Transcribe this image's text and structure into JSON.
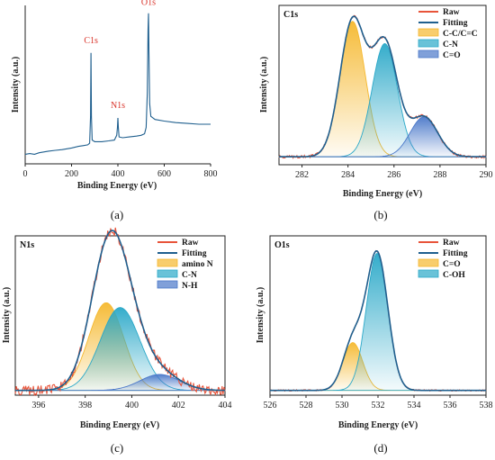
{
  "chart_data": [
    {
      "id": "a",
      "type": "line",
      "caption": "(a)",
      "title": "",
      "xlabel": "Binding Energy (eV)",
      "ylabel": "Intensity (a.u.)",
      "xlim": [
        0,
        800
      ],
      "xticks": [
        "0",
        "200",
        "400",
        "600",
        "800"
      ],
      "legend": [],
      "frame": "left-bottom",
      "annotations": [
        {
          "text": "C1s",
          "x": 284,
          "y": 0.74
        },
        {
          "text": "N1s",
          "x": 400,
          "y": 0.33
        },
        {
          "text": "O1s",
          "x": 532,
          "y": 0.98
        }
      ],
      "series": [
        {
          "color": "#1f5f8e",
          "points": [
            [
              0,
              0.06
            ],
            [
              20,
              0.065
            ],
            [
              40,
              0.06
            ],
            [
              60,
              0.07
            ],
            [
              80,
              0.075
            ],
            [
              100,
              0.08
            ],
            [
              130,
              0.085
            ],
            [
              160,
              0.09
            ],
            [
              200,
              0.1
            ],
            [
              230,
              0.11
            ],
            [
              250,
              0.115
            ],
            [
              270,
              0.12
            ],
            [
              278,
              0.13
            ],
            [
              282,
              0.3
            ],
            [
              284,
              0.7
            ],
            [
              286,
              0.3
            ],
            [
              289,
              0.15
            ],
            [
              300,
              0.14
            ],
            [
              330,
              0.14
            ],
            [
              360,
              0.145
            ],
            [
              385,
              0.15
            ],
            [
              395,
              0.18
            ],
            [
              398,
              0.23
            ],
            [
              400,
              0.29
            ],
            [
              402,
              0.23
            ],
            [
              405,
              0.17
            ],
            [
              420,
              0.165
            ],
            [
              450,
              0.17
            ],
            [
              480,
              0.175
            ],
            [
              500,
              0.18
            ],
            [
              515,
              0.19
            ],
            [
              522,
              0.23
            ],
            [
              527,
              0.45
            ],
            [
              530,
              0.85
            ],
            [
              532,
              0.95
            ],
            [
              534,
              0.7
            ],
            [
              537,
              0.38
            ],
            [
              542,
              0.3
            ],
            [
              560,
              0.28
            ],
            [
              600,
              0.27
            ],
            [
              650,
              0.26
            ],
            [
              700,
              0.255
            ],
            [
              750,
              0.25
            ],
            [
              800,
              0.25
            ]
          ]
        }
      ]
    },
    {
      "id": "b",
      "type": "area",
      "caption": "(b)",
      "title": "C1s",
      "xlabel": "Binding Energy (eV)",
      "ylabel": "Intensity (a.u.)",
      "xlim": [
        281,
        290
      ],
      "xticks": [
        "282",
        "284",
        "286",
        "288",
        "290"
      ],
      "frame": "box",
      "legend_position": "top-right",
      "legend": [
        {
          "label": "Raw",
          "kind": "line",
          "color": "#e8543a"
        },
        {
          "label": "Fitting",
          "kind": "line",
          "color": "#1f5f8e"
        },
        {
          "label": "C-C/C=C",
          "kind": "fill",
          "color": "#f5b82e"
        },
        {
          "label": "C-N",
          "kind": "fill",
          "color": "#2aa8c8"
        },
        {
          "label": "C=O",
          "kind": "fill",
          "color": "#4a78c9"
        }
      ],
      "baseline": 0.05,
      "components": [
        {
          "name": "C-C/C=C",
          "color": "#f5b82e",
          "center": 284.2,
          "height": 0.85,
          "sigma": 0.55
        },
        {
          "name": "C-N",
          "color": "#2aa8c8",
          "center": 285.6,
          "height": 0.71,
          "sigma": 0.55
        },
        {
          "name": "C=O",
          "color": "#4a78c9",
          "center": 287.3,
          "height": 0.25,
          "sigma": 0.6
        }
      ],
      "raw": {
        "color": "#e8543a",
        "noise": 0.008
      },
      "fit": {
        "color": "#1f5f8e"
      }
    },
    {
      "id": "c",
      "type": "area",
      "caption": "(c)",
      "title": "N1s",
      "xlabel": "Binding Energy (eV)",
      "ylabel": "Intensity (a.u.)",
      "xlim": [
        395,
        404
      ],
      "xticks": [
        "396",
        "398",
        "400",
        "402",
        "404"
      ],
      "frame": "box",
      "legend_position": "top-right",
      "legend": [
        {
          "label": "Raw",
          "kind": "line",
          "color": "#e8543a"
        },
        {
          "label": "Fitting",
          "kind": "line",
          "color": "#1f5f8e"
        },
        {
          "label": "amino N",
          "kind": "fill",
          "color": "#f5b82e"
        },
        {
          "label": "C-N",
          "kind": "fill",
          "color": "#2aa8c8"
        },
        {
          "label": "N-H",
          "kind": "fill",
          "color": "#4a78c9"
        }
      ],
      "baseline": 0.03,
      "components": [
        {
          "name": "amino N",
          "color": "#f5b82e",
          "center": 398.9,
          "height": 0.55,
          "sigma": 0.75
        },
        {
          "name": "C-N",
          "color": "#2aa8c8",
          "center": 399.5,
          "height": 0.52,
          "sigma": 0.85
        },
        {
          "name": "N-H",
          "color": "#4a78c9",
          "center": 401.2,
          "height": 0.1,
          "sigma": 0.85
        }
      ],
      "raw": {
        "color": "#e8543a",
        "noise": 0.03
      },
      "fit": {
        "color": "#1f5f8e"
      }
    },
    {
      "id": "d",
      "type": "area",
      "caption": "(d)",
      "title": "O1s",
      "xlabel": "Binding Energy (eV)",
      "ylabel": "Intensity (a.u.)",
      "xlim": [
        526,
        538
      ],
      "xticks": [
        "526",
        "528",
        "530",
        "532",
        "534",
        "536",
        "538"
      ],
      "frame": "box",
      "legend_position": "top-right",
      "legend": [
        {
          "label": "Raw",
          "kind": "line",
          "color": "#e8543a"
        },
        {
          "label": "Fitting",
          "kind": "line",
          "color": "#1f5f8e"
        },
        {
          "label": "C=O",
          "kind": "fill",
          "color": "#f5b82e"
        },
        {
          "label": "C-OH",
          "kind": "fill",
          "color": "#2aa8c8"
        }
      ],
      "baseline": 0.03,
      "components": [
        {
          "name": "C=O",
          "color": "#f5b82e",
          "center": 530.6,
          "height": 0.3,
          "sigma": 0.55
        },
        {
          "name": "C-OH",
          "color": "#2aa8c8",
          "center": 531.95,
          "height": 0.86,
          "sigma": 0.6
        }
      ],
      "raw": {
        "color": "#e8543a",
        "noise": 0.004
      },
      "fit": {
        "color": "#1f5f8e"
      }
    }
  ]
}
